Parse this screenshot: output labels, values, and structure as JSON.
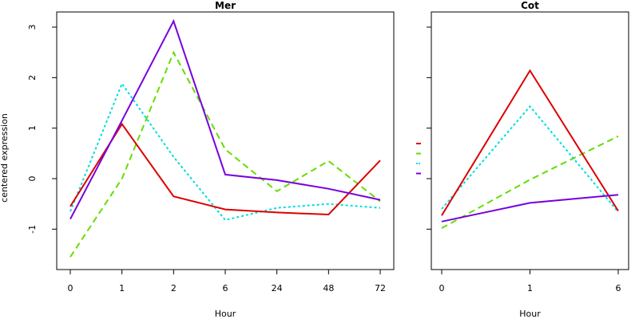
{
  "chart_data": {
    "type": "line",
    "ylabel": "centered expression",
    "ylim": [
      -1.8,
      3.3
    ],
    "yticks": [
      -1,
      0,
      1,
      2,
      3
    ],
    "legend": {
      "placement": "between-panels",
      "entries": [
        {
          "color": "#dd0000",
          "dash": "solid"
        },
        {
          "color": "#66dd00",
          "dash": "dashed"
        },
        {
          "color": "#00dddd",
          "dash": "dotted"
        },
        {
          "color": "#7700dd",
          "dash": "solid"
        }
      ]
    },
    "panels": [
      {
        "title": "Mer",
        "xlabel": "Hour",
        "categories": [
          "0",
          "1",
          "2",
          "6",
          "24",
          "48",
          "72"
        ],
        "series": [
          {
            "color": "#66dd00",
            "dash": "dashed",
            "values": [
              -1.55,
              0.0,
              2.5,
              0.58,
              -0.25,
              0.35,
              -0.45
            ]
          },
          {
            "color": "#00dddd",
            "dash": "dotted",
            "values": [
              -0.65,
              1.88,
              0.43,
              -0.82,
              -0.58,
              -0.5,
              -0.58
            ]
          },
          {
            "color": "#dd0000",
            "dash": "solid",
            "values": [
              -0.55,
              1.08,
              -0.35,
              -0.61,
              -0.67,
              -0.71,
              0.36
            ]
          },
          {
            "color": "#7700dd",
            "dash": "solid",
            "values": [
              -0.8,
              1.15,
              3.12,
              0.08,
              -0.03,
              -0.2,
              -0.42
            ]
          }
        ]
      },
      {
        "title": "Cot",
        "xlabel": "Hour",
        "categories": [
          "0",
          "1",
          "6"
        ],
        "series": [
          {
            "color": "#66dd00",
            "dash": "dashed",
            "values": [
              -0.98,
              -0.02,
              0.84
            ]
          },
          {
            "color": "#00dddd",
            "dash": "dotted",
            "values": [
              -0.6,
              1.43,
              -0.66
            ]
          },
          {
            "color": "#dd0000",
            "dash": "solid",
            "values": [
              -0.73,
              2.14,
              -0.64
            ]
          },
          {
            "color": "#7700dd",
            "dash": "solid",
            "values": [
              -0.85,
              -0.48,
              -0.32
            ]
          }
        ]
      }
    ]
  }
}
